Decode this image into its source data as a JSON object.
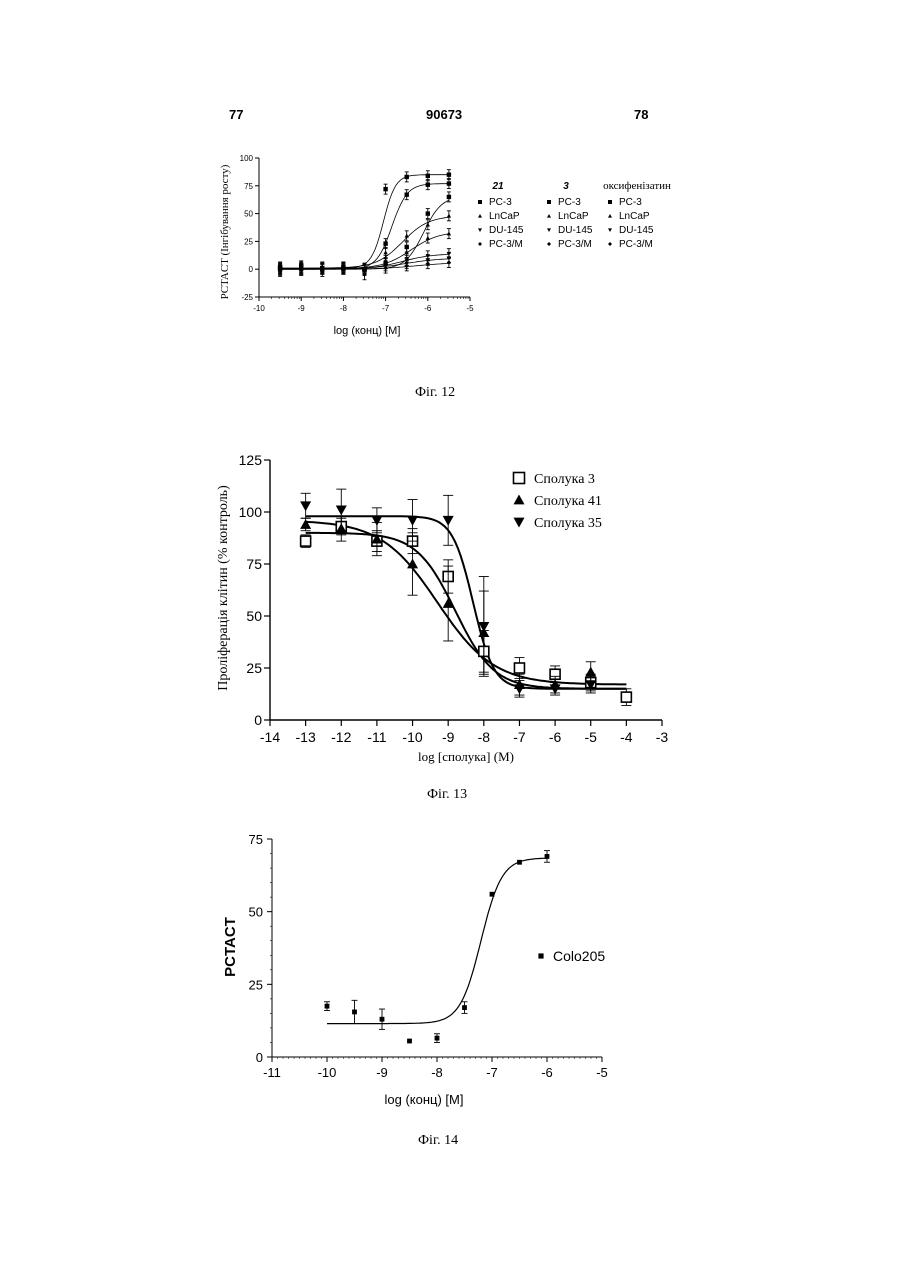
{
  "header": {
    "left": "77",
    "center": "90673",
    "right": "78"
  },
  "captions": {
    "fig12": "Фіг. 12",
    "fig13": "Фіг. 13",
    "fig14": "Фіг. 14"
  },
  "chart_data": [
    {
      "type": "scatter",
      "title": "",
      "xlabel": "log (конц) [M]",
      "ylabel": "PCTACT (Інгібування росту)",
      "xlim": [
        -10,
        -5
      ],
      "ylim": [
        -25,
        100
      ],
      "xticks": [
        "-10",
        "-9",
        "-8",
        "-7",
        "-6",
        "-5"
      ],
      "yticks": [
        "-25",
        "0",
        "25",
        "50",
        "75",
        "100"
      ],
      "legend_position": "right",
      "legend": {
        "groups": [
          {
            "header": "21",
            "entries": [
              "PC-3",
              "LnCaP",
              "DU-145",
              "PC-3/M"
            ]
          },
          {
            "header": "3",
            "entries": [
              "PC-3",
              "LnCaP",
              "DU-145",
              "PC-3/M"
            ]
          },
          {
            "header": "оксифенізатин",
            "entries": [
              "PC-3",
              "LnCaP",
              "DU-145",
              "PC-3/M"
            ]
          }
        ]
      },
      "x": [
        -9.5,
        -9.0,
        -8.5,
        -8.0,
        -7.5,
        -7.0,
        -6.5,
        -6.0,
        -5.5
      ],
      "series": [
        {
          "name": "21 PC-3",
          "marker": "square",
          "values": [
            2,
            3,
            1,
            2,
            0,
            72,
            83,
            84,
            85
          ]
        },
        {
          "name": "3 PC-3",
          "marker": "square",
          "values": [
            1,
            2,
            0,
            1,
            -1,
            23,
            67,
            76,
            77
          ]
        },
        {
          "name": "оксифенізатин PC-3",
          "marker": "square",
          "values": [
            0,
            1,
            1,
            0,
            0,
            5,
            20,
            50,
            65
          ]
        },
        {
          "name": "21 LnCaP",
          "marker": "triangle-up",
          "values": [
            0,
            1,
            0,
            2,
            1,
            15,
            30,
            40,
            48
          ]
        },
        {
          "name": "3 LnCaP",
          "marker": "triangle-up",
          "values": [
            1,
            0,
            2,
            1,
            0,
            8,
            15,
            28,
            32
          ]
        },
        {
          "name": "21 DU-145",
          "marker": "triangle-down",
          "values": [
            -2,
            -1,
            0,
            1,
            -5,
            5,
            8,
            12,
            14
          ]
        },
        {
          "name": "3 DU-145",
          "marker": "triangle-down",
          "values": [
            0,
            -1,
            1,
            0,
            0,
            3,
            5,
            8,
            10
          ]
        },
        {
          "name": "21 PC-3/M",
          "marker": "diamond",
          "values": [
            -1,
            0,
            -2,
            0,
            -1,
            1,
            3,
            5,
            6
          ]
        }
      ]
    },
    {
      "type": "scatter",
      "title": "",
      "xlabel": "log [сполука] (M)",
      "ylabel": "Проліферація клітин (% контроль)",
      "xlim": [
        -14,
        -3
      ],
      "ylim": [
        0,
        125
      ],
      "xticks": [
        "-14",
        "-13",
        "-12",
        "-11",
        "-10",
        "-9",
        "-8",
        "-7",
        "-6",
        "-5",
        "-4",
        "-3"
      ],
      "yticks": [
        "0",
        "25",
        "50",
        "75",
        "100",
        "125"
      ],
      "legend_position": "top-right",
      "series": [
        {
          "name": "Сполука 3",
          "marker": "square-open",
          "x": [
            -13,
            -12,
            -11,
            -10,
            -9,
            -8,
            -7,
            -6,
            -5,
            -4
          ],
          "values": [
            86,
            93,
            86,
            86,
            69,
            33,
            25,
            22,
            18,
            11
          ],
          "errors": [
            3,
            4,
            5,
            6,
            8,
            10,
            5,
            4,
            4,
            4
          ]
        },
        {
          "name": "Сполука 41",
          "marker": "triangle-up",
          "x": [
            -13,
            -12,
            -11,
            -10,
            -9,
            -8,
            -7,
            -6,
            -5
          ],
          "values": [
            94,
            92,
            87,
            75,
            56,
            42,
            17,
            17,
            23
          ],
          "errors": [
            3,
            6,
            8,
            15,
            18,
            20,
            5,
            4,
            5
          ]
        },
        {
          "name": "Сполука 35",
          "marker": "triangle-down",
          "x": [
            -13,
            -12,
            -11,
            -10,
            -9,
            -8,
            -7,
            -6,
            -5
          ],
          "values": [
            103,
            101,
            96,
            96,
            96,
            45,
            15,
            15,
            17
          ],
          "errors": [
            6,
            10,
            6,
            10,
            12,
            24,
            4,
            3,
            4
          ]
        }
      ],
      "curves": [
        {
          "name": "Сполука 3",
          "top": 90,
          "bottom": 15,
          "ec50": -8.8,
          "hill": 0.8
        },
        {
          "name": "Сполука 41",
          "top": 96,
          "bottom": 17,
          "ec50": -9.3,
          "hill": 0.55
        },
        {
          "name": "Сполука 35",
          "top": 98,
          "bottom": 15,
          "ec50": -8.3,
          "hill": 1.5
        }
      ]
    },
    {
      "type": "scatter",
      "title": "",
      "xlabel": "log (конц) [M]",
      "ylabel": "PCTACT",
      "xlim": [
        -11,
        -5
      ],
      "ylim": [
        0,
        75
      ],
      "xticks": [
        "-11",
        "-10",
        "-9",
        "-8",
        "-7",
        "-6",
        "-5"
      ],
      "yticks": [
        "0",
        "25",
        "50",
        "75"
      ],
      "legend_position": "right",
      "series": [
        {
          "name": "Colo205",
          "marker": "square",
          "x": [
            -10,
            -9.5,
            -9,
            -8.5,
            -8,
            -7.5,
            -7,
            -6.5,
            -6
          ],
          "values": [
            17.5,
            15.5,
            13,
            5.5,
            6.5,
            17,
            56,
            67,
            69
          ],
          "errors": [
            1.5,
            4,
            3.5,
            0,
            1.5,
            2,
            0,
            0,
            2
          ]
        }
      ],
      "curves": [
        {
          "name": "Colo205",
          "top": 68.5,
          "bottom": 11.5,
          "ec50": -7.2,
          "hill": 2.3
        }
      ]
    }
  ]
}
